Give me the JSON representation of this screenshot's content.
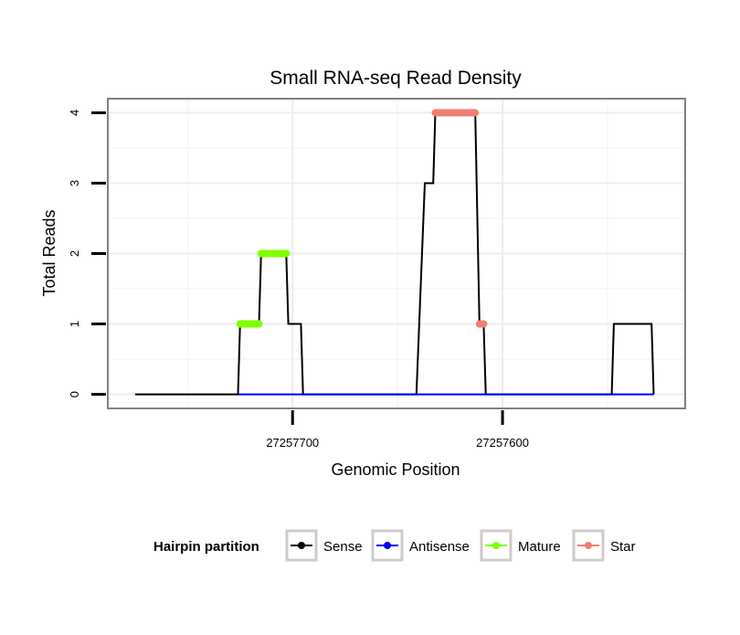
{
  "chart_data": {
    "type": "line",
    "title": "Small RNA-seq Read Density",
    "xlabel": "Genomic Position",
    "ylabel": "Total Reads",
    "x_reversed": true,
    "xlim": [
      27257788,
      27257513
    ],
    "ylim": [
      -0.2,
      4.2
    ],
    "x_ticks": [
      {
        "value": 27257700,
        "label": "27257700"
      },
      {
        "value": 27257600,
        "label": "27257600"
      }
    ],
    "y_ticks": [
      {
        "value": 0,
        "label": "0"
      },
      {
        "value": 1,
        "label": "1"
      },
      {
        "value": 2,
        "label": "2"
      },
      {
        "value": 3,
        "label": "3"
      },
      {
        "value": 4,
        "label": "4"
      }
    ],
    "grid": true,
    "legend_position": "bottom",
    "legend_title": "Hairpin partition",
    "series": [
      {
        "name": "Sense",
        "color": "#000000",
        "points": [
          [
            27257775,
            0
          ],
          [
            27257726,
            0
          ],
          [
            27257725,
            1
          ],
          [
            27257716,
            1
          ],
          [
            27257715,
            2
          ],
          [
            27257703,
            2
          ],
          [
            27257702,
            1
          ],
          [
            27257696,
            1
          ],
          [
            27257695,
            0
          ],
          [
            27257641,
            0
          ],
          [
            27257637,
            3
          ],
          [
            27257633,
            3
          ],
          [
            27257632,
            4
          ],
          [
            27257613,
            4
          ],
          [
            27257611,
            1
          ],
          [
            27257609,
            1
          ],
          [
            27257608,
            0
          ],
          [
            27257548,
            0
          ],
          [
            27257547,
            1
          ],
          [
            27257529,
            1
          ],
          [
            27257528,
            0
          ]
        ]
      },
      {
        "name": "Antisense",
        "color": "#0000ff",
        "points": [
          [
            27257726,
            0
          ],
          [
            27257528,
            0
          ]
        ]
      },
      {
        "name": "Mature",
        "color": "#7fff00",
        "segments": [
          {
            "from": 27257725,
            "to": 27257716,
            "value": 1
          },
          {
            "from": 27257715,
            "to": 27257703,
            "value": 2
          }
        ]
      },
      {
        "name": "Star",
        "color": "#f08073",
        "segments": [
          {
            "from": 27257632,
            "to": 27257613,
            "value": 4
          },
          {
            "from": 27257611,
            "to": 27257609,
            "value": 1
          }
        ]
      }
    ]
  }
}
